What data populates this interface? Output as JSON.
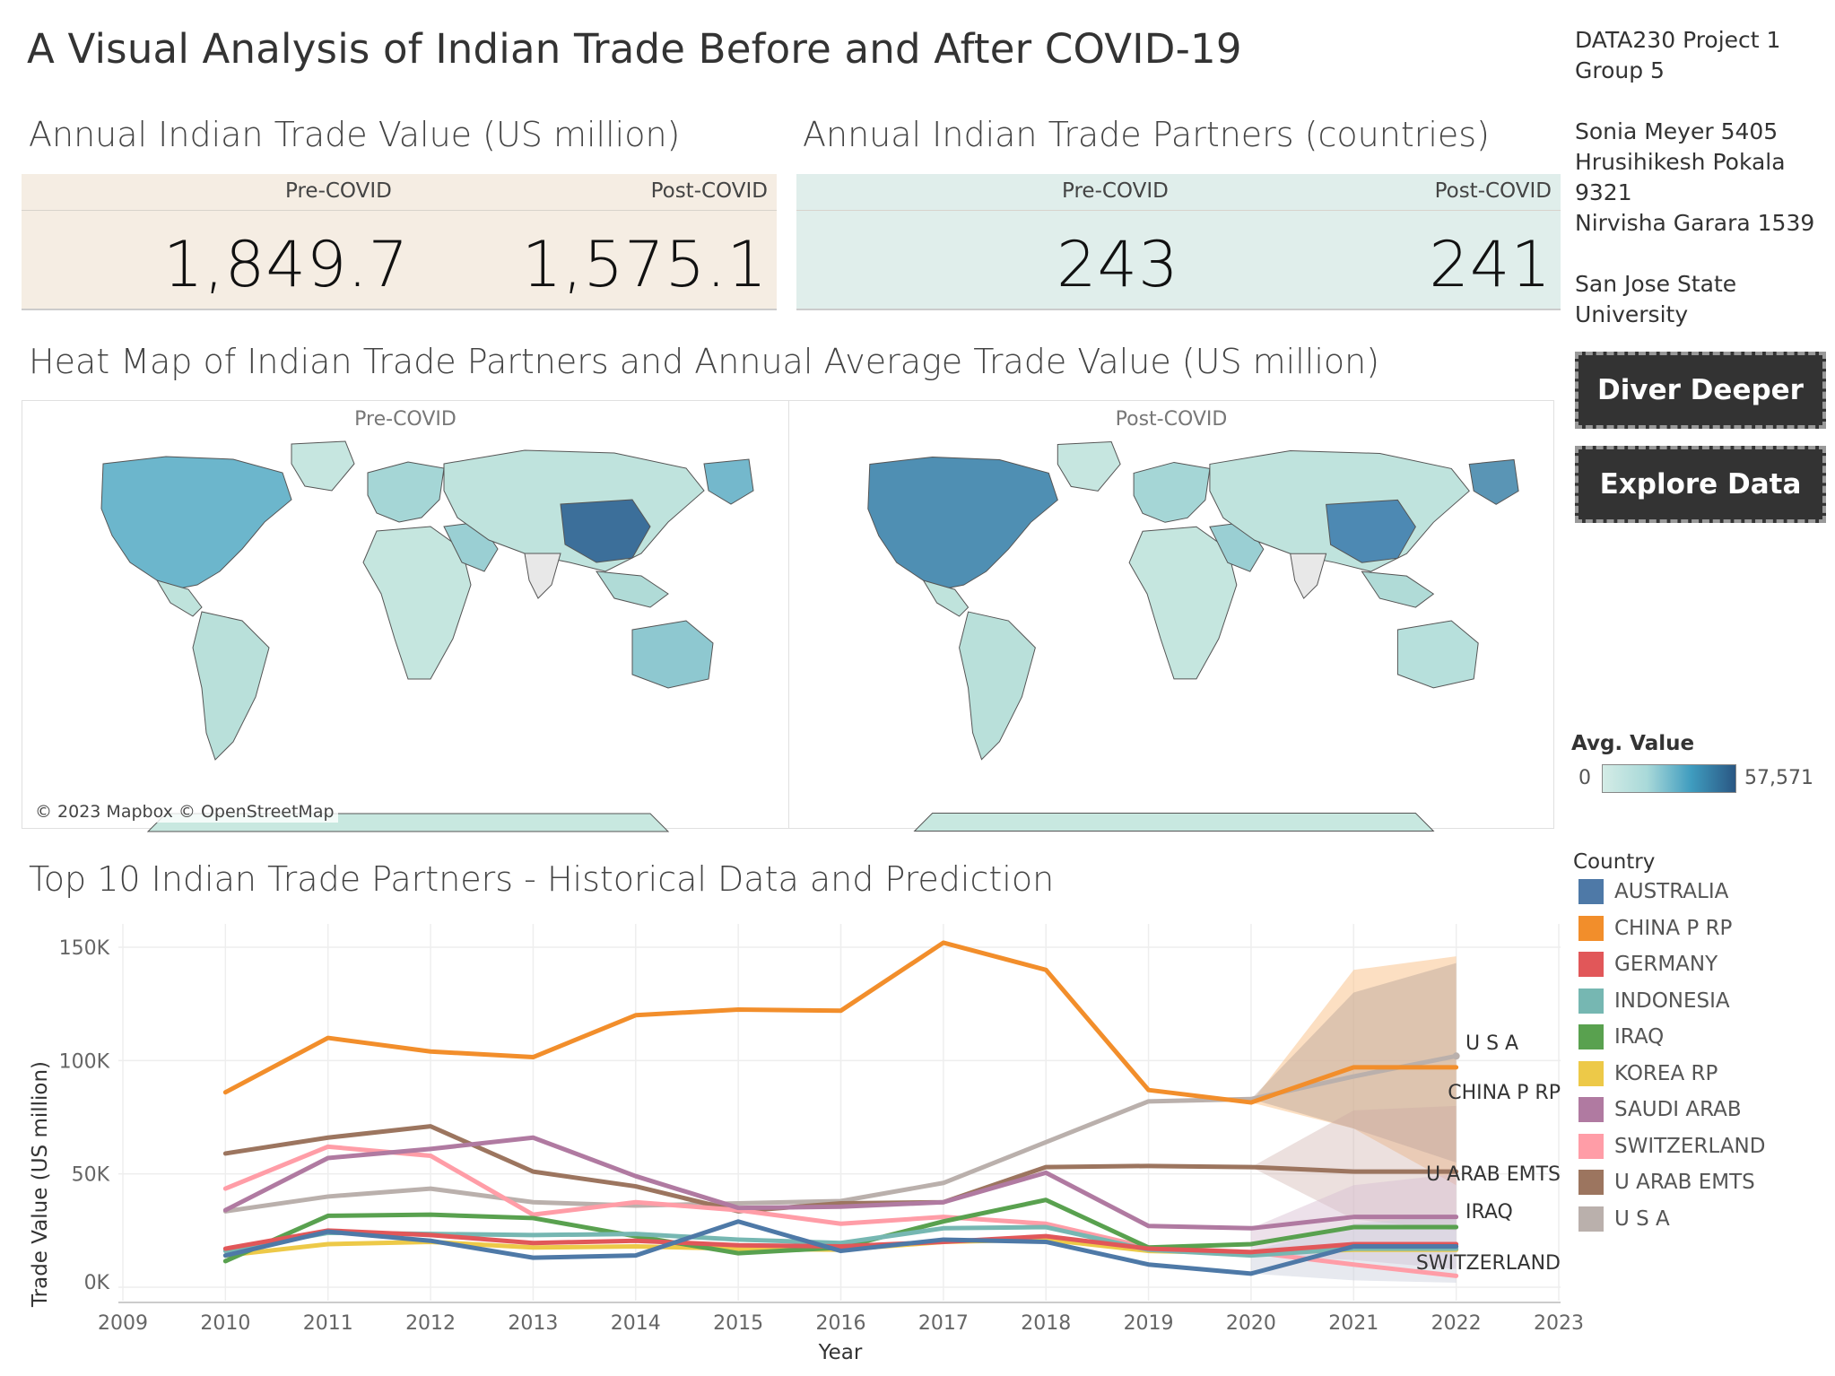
{
  "title": "A Visual Analysis of Indian Trade Before and After COVID-19",
  "info": {
    "project": "DATA230 Project 1",
    "group": "Group 5",
    "members": [
      "Sonia Meyer 5405",
      "Hrusihikesh Pokala",
      "9321",
      "Nirvisha Garara 1539"
    ],
    "uni1": "San Jose State",
    "uni2": "University"
  },
  "trade_value": {
    "title": "Annual Indian Trade Value (US million)",
    "pre_label": "Pre-COVID",
    "post_label": "Post-COVID",
    "pre_value": "1,849.7",
    "post_value": "1,575.1",
    "bg": "#f5ede3"
  },
  "trade_partners": {
    "title": "Annual Indian Trade Partners (countries)",
    "pre_label": "Pre-COVID",
    "post_label": "Post-COVID",
    "pre_value": "243",
    "post_value": "241",
    "bg": "#e0eeeb"
  },
  "heatmap": {
    "title": "Heat Map of Indian Trade Partners and Annual Average Trade Value (US million)",
    "pre_label": "Pre-COVID",
    "post_label": "Post-COVID",
    "attribution": "© 2023 Mapbox © OpenStreetMap",
    "legend_title": "Avg. Value",
    "legend_min": "0",
    "legend_max": "57,571",
    "gradient": [
      "#d4ece6",
      "#a9d9d9",
      "#3f9cbf",
      "#2a5783"
    ]
  },
  "buttons": {
    "dive": "Diver Deeper",
    "explore": "Explore Data"
  },
  "lines_title": "Top 10 Indian Trade Partners - Historical Data and Prediction",
  "legend": {
    "title": "Country",
    "items": [
      "AUSTRALIA",
      "CHINA P RP",
      "GERMANY",
      "INDONESIA",
      "IRAQ",
      "KOREA RP",
      "SAUDI ARAB",
      "SWITZERLAND",
      "U ARAB EMTS",
      "U S A"
    ]
  },
  "chart_data": {
    "type": "line",
    "xlabel": "Year",
    "ylabel": "Trade Value (US million)",
    "x_ticks": [
      "2009",
      "2010",
      "2011",
      "2012",
      "2013",
      "2014",
      "2015",
      "2016",
      "2017",
      "2018",
      "2019",
      "2020",
      "2021",
      "2022",
      "2023"
    ],
    "y_ticks": [
      "150K",
      "100K",
      "50K",
      "0K"
    ],
    "xlim": [
      2009,
      2023
    ],
    "ylim": [
      0,
      150000
    ],
    "x": [
      2010,
      2011,
      2012,
      2013,
      2014,
      2015,
      2016,
      2017,
      2018,
      2019,
      2020,
      2021,
      2022
    ],
    "series": [
      {
        "name": "AUSTRALIA",
        "color": "#4e79a7",
        "values": [
          14000,
          24500,
          20500,
          13000,
          14000,
          29000,
          16000,
          21000,
          20000,
          10000,
          6000,
          18000,
          18000
        ]
      },
      {
        "name": "CHINA P RP",
        "color": "#f28e2b",
        "values": [
          86000,
          110000,
          104000,
          101500,
          120000,
          122500,
          122000,
          152000,
          140000,
          87000,
          81500,
          97000,
          97000
        ]
      },
      {
        "name": "GERMANY",
        "color": "#e15759",
        "values": [
          17000,
          25000,
          23000,
          19500,
          20500,
          18500,
          18000,
          20000,
          22500,
          17000,
          15500,
          19000,
          19000
        ]
      },
      {
        "name": "INDONESIA",
        "color": "#76b7b2",
        "values": [
          16000,
          24000,
          23500,
          23000,
          23500,
          21000,
          19500,
          26000,
          26500,
          16500,
          14000,
          17000,
          17000
        ]
      },
      {
        "name": "IRAQ",
        "color": "#59a14f",
        "values": [
          11500,
          31500,
          32000,
          30500,
          22500,
          15000,
          17500,
          29000,
          38500,
          17500,
          19000,
          26500,
          26500
        ]
      },
      {
        "name": "KOREA RP",
        "color": "#edc948",
        "values": [
          14000,
          19000,
          20000,
          17500,
          18000,
          17000,
          16500,
          20000,
          21000,
          16000,
          15000,
          16500,
          16500
        ]
      },
      {
        "name": "SAUDI ARAB",
        "color": "#b07aa1",
        "values": [
          34000,
          57000,
          61000,
          66000,
          49000,
          35000,
          35500,
          37500,
          50500,
          27000,
          26000,
          31000,
          31000
        ]
      },
      {
        "name": "SWITZERLAND",
        "color": "#ff9da7",
        "values": [
          43500,
          62000,
          58000,
          32000,
          37500,
          34000,
          28000,
          31000,
          28000,
          17500,
          15500,
          10000,
          5000
        ]
      },
      {
        "name": "U ARAB EMTS",
        "color": "#9c755f",
        "values": [
          59000,
          66000,
          71000,
          51000,
          44500,
          33500,
          37000,
          37500,
          53000,
          53500,
          53000,
          51000,
          51000
        ]
      },
      {
        "name": "U S A",
        "color": "#bab0ac",
        "values": [
          33500,
          40000,
          43500,
          37500,
          36000,
          37000,
          38000,
          46000,
          64000,
          82000,
          83000,
          93000,
          102000
        ]
      }
    ],
    "line_labels": [
      "U S A",
      "CHINA P RP",
      "U ARAB EMTS",
      "IRAQ",
      "SWITZERLAND"
    ],
    "grid": true
  }
}
